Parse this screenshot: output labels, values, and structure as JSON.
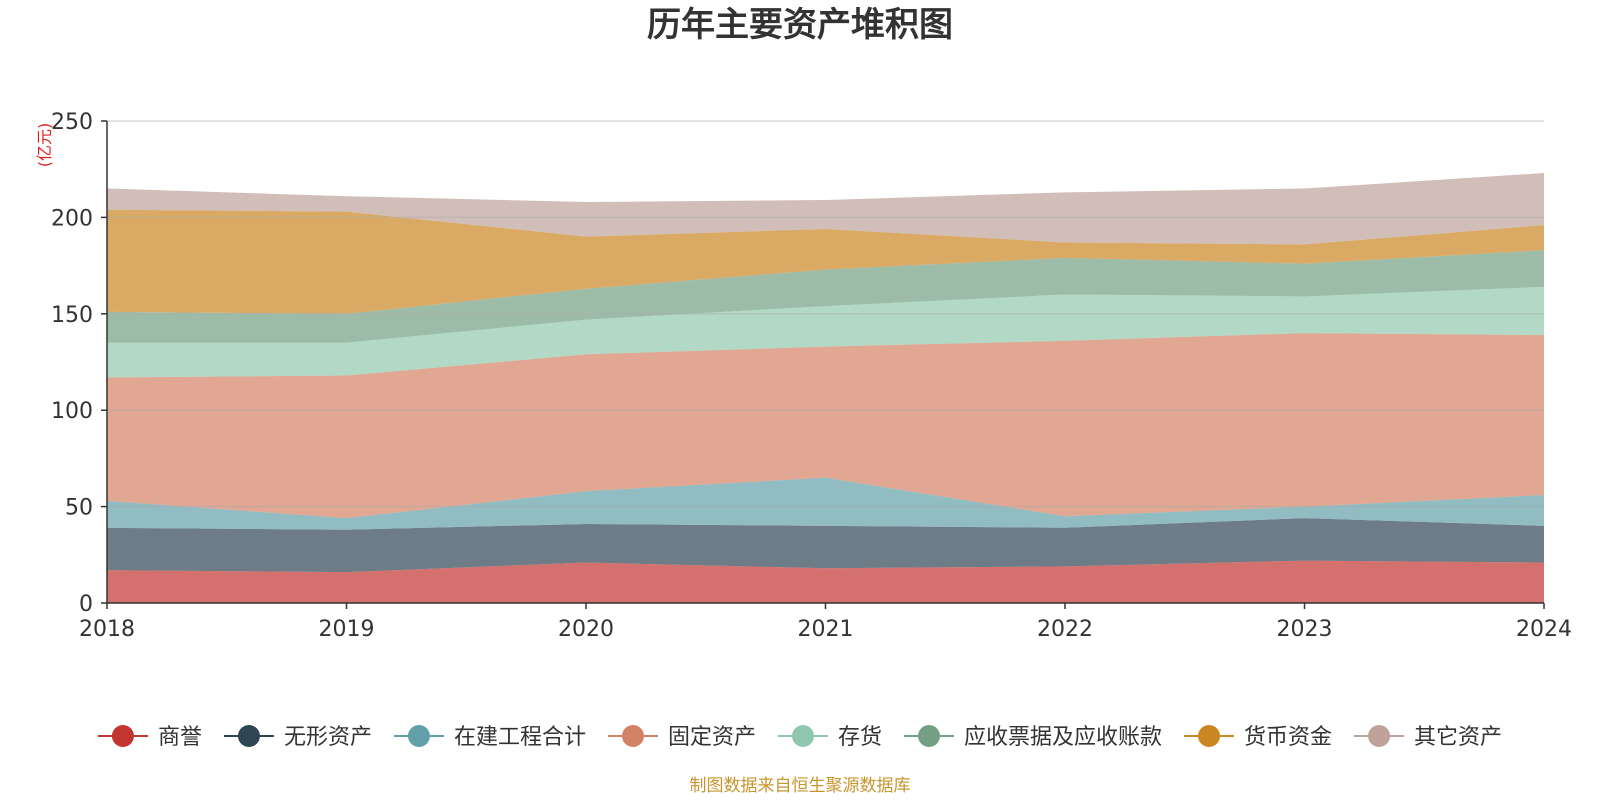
{
  "chart_data": {
    "type": "area",
    "stacked": true,
    "title": "历年主要资产堆积图",
    "unit_label": "(亿元)",
    "source_note": "制图数据来自恒生聚源数据库",
    "x": [
      "2018",
      "2019",
      "2020",
      "2021",
      "2022",
      "2023",
      "2024"
    ],
    "ylim": [
      0,
      250
    ],
    "yticks": [
      0,
      50,
      100,
      150,
      200,
      250
    ],
    "grid": true,
    "legend_position": "bottom",
    "series": [
      {
        "name": "商誉",
        "color": "#c23531",
        "values": [
          17,
          16,
          21,
          18,
          19,
          22,
          21
        ]
      },
      {
        "name": "无形资产",
        "color": "#2f4554",
        "values": [
          22,
          22,
          20,
          22,
          20,
          22,
          19
        ]
      },
      {
        "name": "在建工程合计",
        "color": "#61a0a8",
        "values": [
          14,
          6,
          17,
          25,
          6,
          6,
          16
        ]
      },
      {
        "name": "固定资产",
        "color": "#d48265",
        "values": [
          64,
          74,
          71,
          68,
          91,
          90,
          83
        ]
      },
      {
        "name": "存货",
        "color": "#91c7ae",
        "values": [
          18,
          17,
          18,
          21,
          24,
          19,
          25
        ]
      },
      {
        "name": "应收票据及应收账款",
        "color": "#749f83",
        "values": [
          16,
          15,
          16,
          19,
          19,
          17,
          19
        ]
      },
      {
        "name": "货币资金",
        "color": "#ca8622",
        "values": [
          53,
          53,
          27,
          21,
          8,
          10,
          13
        ]
      },
      {
        "name": "其它资产",
        "color": "#bda29a",
        "values": [
          11,
          8,
          18,
          15,
          26,
          29,
          27
        ]
      }
    ]
  }
}
